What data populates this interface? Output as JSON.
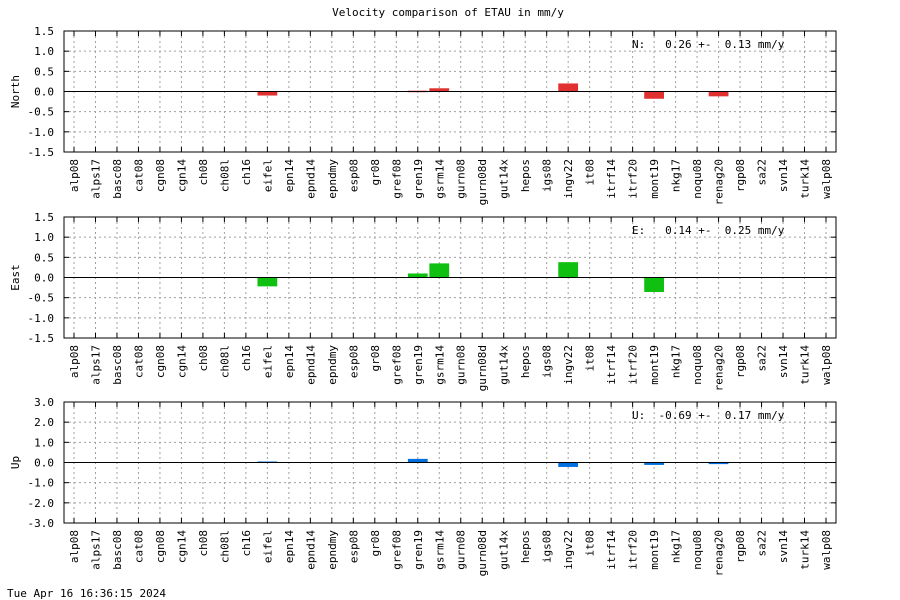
{
  "title": "Velocity comparison of ETAU in mm/y",
  "footer_timestamp": "Tue Apr 16 16:36:15 2024",
  "colors": {
    "north": "#e03030",
    "east": "#10c010",
    "up": "#0070e0"
  },
  "chart_data": [
    {
      "type": "bar",
      "name": "north",
      "ylabel": "North",
      "ylim": [
        -1.5,
        1.5
      ],
      "yticks": [
        "1.5",
        "1.0",
        "0.5",
        "0.0",
        "-0.5",
        "-1.0",
        "-1.5"
      ],
      "annotation": "N:   0.26 +-  0.13 mm/y",
      "grid": true,
      "categories": [
        "alp08",
        "alps17",
        "basc08",
        "cat08",
        "cgn08",
        "cgn14",
        "ch08",
        "ch08l",
        "ch16",
        "eifel",
        "epn14",
        "epnd14",
        "epndmy",
        "esp08",
        "gr08",
        "gref08",
        "gren19",
        "gsrm14",
        "gurn08",
        "gurn08d",
        "gut14x",
        "hepos",
        "igs08",
        "ingv22",
        "it08",
        "itrf14",
        "itrf20",
        "mont19",
        "nkg17",
        "noqu08",
        "renag20",
        "rgp08",
        "sa22",
        "svn14",
        "turk14",
        "walp08"
      ],
      "values": [
        0,
        0,
        0,
        0,
        0,
        0,
        0,
        0,
        0,
        -0.1,
        0,
        0,
        0,
        0,
        0,
        0,
        0.02,
        0.08,
        0,
        0,
        0,
        0,
        0,
        0.2,
        0,
        0,
        0,
        -0.18,
        0,
        0,
        -0.12,
        0,
        0,
        0,
        0,
        0
      ]
    },
    {
      "type": "bar",
      "name": "east",
      "ylabel": "East",
      "ylim": [
        -1.5,
        1.5
      ],
      "yticks": [
        "1.5",
        "1.0",
        "0.5",
        "0.0",
        "-0.5",
        "-1.0",
        "-1.5"
      ],
      "annotation": "E:   0.14 +-  0.25 mm/y",
      "grid": true,
      "categories": [
        "alp08",
        "alps17",
        "basc08",
        "cat08",
        "cgn08",
        "cgn14",
        "ch08",
        "ch08l",
        "ch16",
        "eifel",
        "epn14",
        "epnd14",
        "epndmy",
        "esp08",
        "gr08",
        "gref08",
        "gren19",
        "gsrm14",
        "gurn08",
        "gurn08d",
        "gut14x",
        "hepos",
        "igs08",
        "ingv22",
        "it08",
        "itrf14",
        "itrf20",
        "mont19",
        "nkg17",
        "noqu08",
        "renag20",
        "rgp08",
        "sa22",
        "svn14",
        "turk14",
        "walp08"
      ],
      "values": [
        0,
        0,
        0,
        0,
        0,
        0,
        0,
        0,
        0,
        -0.22,
        0,
        0,
        0,
        0,
        0,
        0,
        0.1,
        0.35,
        0,
        0,
        0,
        0,
        0,
        0.38,
        0,
        0,
        0,
        -0.36,
        0,
        0,
        0,
        0,
        0,
        0,
        0,
        0
      ]
    },
    {
      "type": "bar",
      "name": "up",
      "ylabel": "Up",
      "ylim": [
        -3.0,
        3.0
      ],
      "yticks": [
        "3.0",
        "2.0",
        "1.0",
        "0.0",
        "-1.0",
        "-2.0",
        "-3.0"
      ],
      "annotation": "U:  -0.69 +-  0.17 mm/y",
      "grid": true,
      "categories": [
        "alp08",
        "alps17",
        "basc08",
        "cat08",
        "cgn08",
        "cgn14",
        "ch08",
        "ch08l",
        "ch16",
        "eifel",
        "epn14",
        "epnd14",
        "epndmy",
        "esp08",
        "gr08",
        "gref08",
        "gren19",
        "gsrm14",
        "gurn08",
        "gurn08d",
        "gut14x",
        "hepos",
        "igs08",
        "ingv22",
        "it08",
        "itrf14",
        "itrf20",
        "mont19",
        "nkg17",
        "noqu08",
        "renag20",
        "rgp08",
        "sa22",
        "svn14",
        "turk14",
        "walp08"
      ],
      "values": [
        0,
        0,
        0,
        0,
        0,
        0,
        0,
        0,
        0,
        0.05,
        0,
        0,
        0,
        0,
        0,
        0,
        0.18,
        0,
        0,
        0,
        0,
        0,
        0,
        -0.22,
        0,
        0,
        0,
        -0.12,
        0,
        0,
        -0.08,
        0,
        0,
        0,
        0,
        0
      ]
    }
  ]
}
